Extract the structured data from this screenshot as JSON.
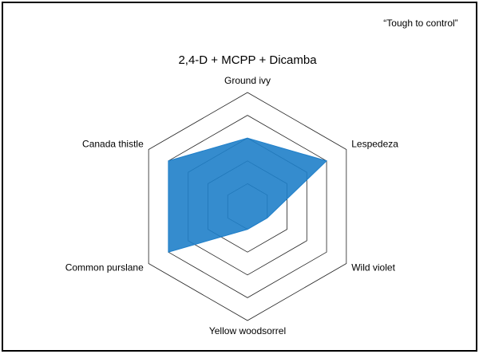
{
  "chart_data": {
    "type": "radar",
    "title": "2,4-D + MCPP + Dicamba",
    "annotation": "“Tough to control”",
    "categories": [
      "Ground ivy",
      "Lespedeza",
      "Wild violet",
      "Yellow woodsorrel",
      "Common purslane",
      "Canada thistle"
    ],
    "values": [
      3,
      4,
      1,
      1,
      4,
      4
    ],
    "color": "#1f7fc9",
    "rlim": [
      0,
      5
    ],
    "rticks": [
      1,
      2,
      3,
      4,
      5
    ],
    "grid": true
  }
}
